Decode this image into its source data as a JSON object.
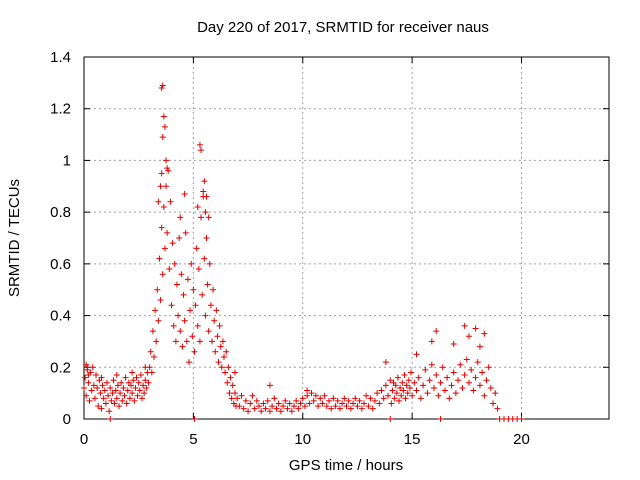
{
  "chart_data": {
    "type": "scatter",
    "title": "Day 220 of 2017, SRMTID for receiver naus",
    "xlabel": "GPS time / hours",
    "ylabel": "SRMTID / TECUs",
    "xlim": [
      0,
      24
    ],
    "ylim": [
      0,
      1.4
    ],
    "x_ticks": [
      0,
      5,
      10,
      15,
      20
    ],
    "y_ticks": [
      0,
      0.2,
      0.4,
      0.6,
      0.8,
      1,
      1.2,
      1.4
    ],
    "x_tick_labels": [
      "0",
      "5",
      "10",
      "15",
      "20"
    ],
    "y_tick_labels": [
      "0",
      "0.2",
      "0.4",
      "0.6",
      "0.8",
      "1",
      "1.2",
      "1.4"
    ],
    "grid": true,
    "marker": "+",
    "color": "#e00000",
    "series": [
      {
        "name": "SRMTID",
        "points": [
          [
            0.0,
            0.12
          ],
          [
            0.05,
            0.16
          ],
          [
            0.1,
            0.09
          ],
          [
            0.15,
            0.2
          ],
          [
            0.2,
            0.14
          ],
          [
            0.25,
            0.07
          ],
          [
            0.3,
            0.18
          ],
          [
            0.35,
            0.11
          ],
          [
            0.4,
            0.2
          ],
          [
            0.45,
            0.13
          ],
          [
            0.5,
            0.08
          ],
          [
            0.55,
            0.17
          ],
          [
            0.6,
            0.12
          ],
          [
            0.65,
            0.05
          ],
          [
            0.7,
            0.15
          ],
          [
            0.75,
            0.1
          ],
          [
            0.8,
            0.04
          ],
          [
            0.85,
            0.13
          ],
          [
            0.9,
            0.08
          ],
          [
            0.95,
            0.11
          ],
          [
            1.0,
            0.06
          ],
          [
            1.05,
            0.14
          ],
          [
            1.1,
            0.09
          ],
          [
            1.15,
            0.03
          ],
          [
            1.2,
            0.12
          ],
          [
            1.25,
            0.07
          ],
          [
            1.3,
            0.1
          ],
          [
            1.35,
            0.15
          ],
          [
            1.4,
            0.06
          ],
          [
            1.45,
            0.11
          ],
          [
            1.5,
            0.08
          ],
          [
            1.55,
            0.13
          ],
          [
            1.6,
            0.05
          ],
          [
            1.65,
            0.1
          ],
          [
            1.7,
            0.14
          ],
          [
            1.75,
            0.07
          ],
          [
            1.8,
            0.12
          ],
          [
            1.85,
            0.09
          ],
          [
            1.9,
            0.16
          ],
          [
            1.95,
            0.06
          ],
          [
            2.0,
            0.11
          ],
          [
            2.05,
            0.14
          ],
          [
            2.1,
            0.08
          ],
          [
            2.15,
            0.13
          ],
          [
            2.2,
            0.1
          ],
          [
            2.25,
            0.15
          ],
          [
            2.3,
            0.07
          ],
          [
            2.35,
            0.12
          ],
          [
            2.4,
            0.16
          ],
          [
            2.45,
            0.09
          ],
          [
            2.5,
            0.14
          ],
          [
            2.55,
            0.11
          ],
          [
            2.6,
            0.17
          ],
          [
            2.65,
            0.08
          ],
          [
            2.7,
            0.13
          ],
          [
            2.75,
            0.1
          ],
          [
            2.8,
            0.15
          ],
          [
            2.85,
            0.12
          ],
          [
            2.9,
            0.18
          ],
          [
            2.95,
            0.14
          ],
          [
            3.0,
            0.2
          ],
          [
            3.05,
            0.26
          ],
          [
            3.1,
            0.18
          ],
          [
            3.15,
            0.34
          ],
          [
            3.2,
            0.24
          ],
          [
            3.25,
            0.42
          ],
          [
            3.3,
            0.3
          ],
          [
            3.35,
            0.5
          ],
          [
            3.4,
            0.38
          ],
          [
            3.45,
            0.62
          ],
          [
            3.5,
            0.46
          ],
          [
            3.55,
            0.74
          ],
          [
            3.6,
            0.56
          ],
          [
            3.65,
            0.82
          ],
          [
            3.7,
            0.66
          ],
          [
            3.75,
            0.9
          ],
          [
            3.8,
            0.72
          ],
          [
            3.85,
            0.96
          ],
          [
            3.9,
            0.58
          ],
          [
            3.95,
            0.84
          ],
          [
            4.0,
            0.44
          ],
          [
            4.05,
            0.68
          ],
          [
            4.1,
            0.36
          ],
          [
            4.15,
            0.6
          ],
          [
            4.2,
            0.3
          ],
          [
            4.25,
            0.52
          ],
          [
            4.3,
            0.4
          ],
          [
            4.35,
            0.7
          ],
          [
            4.4,
            0.34
          ],
          [
            4.45,
            0.56
          ],
          [
            4.5,
            0.28
          ],
          [
            4.55,
            0.48
          ],
          [
            4.6,
            0.38
          ],
          [
            4.65,
            0.72
          ],
          [
            4.7,
            0.3
          ],
          [
            4.75,
            0.54
          ],
          [
            4.8,
            0.22
          ],
          [
            4.85,
            0.42
          ],
          [
            4.9,
            0.6
          ],
          [
            4.95,
            0.32
          ],
          [
            5.0,
            0.5
          ],
          [
            5.05,
            0.26
          ],
          [
            5.1,
            0.44
          ],
          [
            5.15,
            0.66
          ],
          [
            5.2,
            0.36
          ],
          [
            5.25,
            0.58
          ],
          [
            5.3,
            0.3
          ],
          [
            5.35,
            0.78
          ],
          [
            5.4,
            0.48
          ],
          [
            5.45,
            0.86
          ],
          [
            5.5,
            0.62
          ],
          [
            5.55,
            0.4
          ],
          [
            5.6,
            0.7
          ],
          [
            5.65,
            0.52
          ],
          [
            5.7,
            0.34
          ],
          [
            5.75,
            0.6
          ],
          [
            5.8,
            0.44
          ],
          [
            5.85,
            0.3
          ],
          [
            5.9,
            0.5
          ],
          [
            5.95,
            0.38
          ],
          [
            6.0,
            0.26
          ],
          [
            6.05,
            0.42
          ],
          [
            6.1,
            0.32
          ],
          [
            6.15,
            0.22
          ],
          [
            6.2,
            0.36
          ],
          [
            6.25,
            0.28
          ],
          [
            6.3,
            0.2
          ],
          [
            6.35,
            0.3
          ],
          [
            6.4,
            0.24
          ],
          [
            6.45,
            0.18
          ],
          [
            6.5,
            0.26
          ],
          [
            6.55,
            0.14
          ],
          [
            6.6,
            0.2
          ],
          [
            6.65,
            0.1
          ],
          [
            6.7,
            0.16
          ],
          [
            6.75,
            0.08
          ],
          [
            6.8,
            0.13
          ],
          [
            6.85,
            0.06
          ],
          [
            6.9,
            0.1
          ],
          [
            6.95,
            0.05
          ],
          [
            7.0,
            0.08
          ],
          [
            7.1,
            0.05
          ],
          [
            7.2,
            0.09
          ],
          [
            7.3,
            0.04
          ],
          [
            7.4,
            0.07
          ],
          [
            7.5,
            0.03
          ],
          [
            7.6,
            0.06
          ],
          [
            7.7,
            0.09
          ],
          [
            7.8,
            0.04
          ],
          [
            7.9,
            0.07
          ],
          [
            8.0,
            0.05
          ],
          [
            8.1,
            0.03
          ],
          [
            8.2,
            0.06
          ],
          [
            8.3,
            0.04
          ],
          [
            8.4,
            0.07
          ],
          [
            8.5,
            0.03
          ],
          [
            8.6,
            0.05
          ],
          [
            8.7,
            0.08
          ],
          [
            8.8,
            0.04
          ],
          [
            8.9,
            0.06
          ],
          [
            9.0,
            0.03
          ],
          [
            9.1,
            0.05
          ],
          [
            9.2,
            0.07
          ],
          [
            9.3,
            0.04
          ],
          [
            9.4,
            0.06
          ],
          [
            9.5,
            0.03
          ],
          [
            9.6,
            0.05
          ],
          [
            9.7,
            0.07
          ],
          [
            9.8,
            0.04
          ],
          [
            9.9,
            0.06
          ],
          [
            10.0,
            0.08
          ],
          [
            10.1,
            0.05
          ],
          [
            10.2,
            0.09
          ],
          [
            10.3,
            0.06
          ],
          [
            10.4,
            0.1
          ],
          [
            10.5,
            0.07
          ],
          [
            10.6,
            0.09
          ],
          [
            10.7,
            0.05
          ],
          [
            10.8,
            0.08
          ],
          [
            10.9,
            0.06
          ],
          [
            11.0,
            0.09
          ],
          [
            11.1,
            0.05
          ],
          [
            11.2,
            0.07
          ],
          [
            11.3,
            0.04
          ],
          [
            11.4,
            0.08
          ],
          [
            11.5,
            0.05
          ],
          [
            11.6,
            0.07
          ],
          [
            11.7,
            0.04
          ],
          [
            11.8,
            0.06
          ],
          [
            11.9,
            0.08
          ],
          [
            12.0,
            0.05
          ],
          [
            12.1,
            0.07
          ],
          [
            12.2,
            0.04
          ],
          [
            12.3,
            0.06
          ],
          [
            12.4,
            0.08
          ],
          [
            12.5,
            0.05
          ],
          [
            12.6,
            0.07
          ],
          [
            12.7,
            0.04
          ],
          [
            12.8,
            0.06
          ],
          [
            12.9,
            0.09
          ],
          [
            13.0,
            0.05
          ],
          [
            13.1,
            0.08
          ],
          [
            13.2,
            0.04
          ],
          [
            13.3,
            0.07
          ],
          [
            13.4,
            0.1
          ],
          [
            13.5,
            0.06
          ],
          [
            13.6,
            0.11
          ],
          [
            13.7,
            0.08
          ],
          [
            13.8,
            0.13
          ],
          [
            13.9,
            0.09
          ],
          [
            14.0,
            0.15
          ],
          [
            14.05,
            0.06
          ],
          [
            14.1,
            0.11
          ],
          [
            14.15,
            0.14
          ],
          [
            14.2,
            0.08
          ],
          [
            14.25,
            0.13
          ],
          [
            14.3,
            0.1
          ],
          [
            14.35,
            0.16
          ],
          [
            14.4,
            0.07
          ],
          [
            14.45,
            0.12
          ],
          [
            14.5,
            0.09
          ],
          [
            14.55,
            0.14
          ],
          [
            14.6,
            0.11
          ],
          [
            14.65,
            0.17
          ],
          [
            14.7,
            0.08
          ],
          [
            14.75,
            0.13
          ],
          [
            14.8,
            0.1
          ],
          [
            14.85,
            0.15
          ],
          [
            14.9,
            0.12
          ],
          [
            14.95,
            0.18
          ],
          [
            15.0,
            0.09
          ],
          [
            15.1,
            0.14
          ],
          [
            15.2,
            0.11
          ],
          [
            15.3,
            0.16
          ],
          [
            15.4,
            0.08
          ],
          [
            15.5,
            0.13
          ],
          [
            15.6,
            0.19
          ],
          [
            15.7,
            0.1
          ],
          [
            15.8,
            0.15
          ],
          [
            15.9,
            0.21
          ],
          [
            16.0,
            0.12
          ],
          [
            16.1,
            0.17
          ],
          [
            16.2,
            0.09
          ],
          [
            16.3,
            0.14
          ],
          [
            16.4,
            0.2
          ],
          [
            16.5,
            0.11
          ],
          [
            16.6,
            0.16
          ],
          [
            16.7,
            0.08
          ],
          [
            16.8,
            0.13
          ],
          [
            16.9,
            0.18
          ],
          [
            17.0,
            0.1
          ],
          [
            17.1,
            0.15
          ],
          [
            17.2,
            0.21
          ],
          [
            17.3,
            0.12
          ],
          [
            17.4,
            0.17
          ],
          [
            17.5,
            0.23
          ],
          [
            17.6,
            0.14
          ],
          [
            17.7,
            0.19
          ],
          [
            17.8,
            0.11
          ],
          [
            17.9,
            0.16
          ],
          [
            18.0,
            0.22
          ],
          [
            18.1,
            0.13
          ],
          [
            18.2,
            0.18
          ],
          [
            18.3,
            0.09
          ],
          [
            18.4,
            0.15
          ],
          [
            18.5,
            0.2
          ],
          [
            18.6,
            0.12
          ],
          [
            18.7,
            0.06
          ],
          [
            18.8,
            0.1
          ],
          [
            18.9,
            0.04
          ],
          [
            3.55,
            1.28
          ],
          [
            3.6,
            1.29
          ],
          [
            3.65,
            1.17
          ],
          [
            3.7,
            1.13
          ],
          [
            3.6,
            1.09
          ],
          [
            3.75,
            1.0
          ],
          [
            3.8,
            0.97
          ],
          [
            3.55,
            0.95
          ],
          [
            5.3,
            1.06
          ],
          [
            5.35,
            1.04
          ],
          [
            5.5,
            0.92
          ],
          [
            5.45,
            0.88
          ],
          [
            5.6,
            0.86
          ],
          [
            3.5,
            0.9
          ],
          [
            4.6,
            0.87
          ],
          [
            5.2,
            0.82
          ],
          [
            3.4,
            0.84
          ],
          [
            5.55,
            0.8
          ],
          [
            4.4,
            0.78
          ],
          [
            5.7,
            0.78
          ],
          [
            1.2,
            0.0
          ],
          [
            5.05,
            0.0
          ],
          [
            14.0,
            0.0
          ],
          [
            16.3,
            0.0
          ],
          [
            19.0,
            0.0
          ],
          [
            19.2,
            0.0
          ],
          [
            19.4,
            0.0
          ],
          [
            19.6,
            0.0
          ],
          [
            19.8,
            0.0
          ],
          [
            20.0,
            0.0
          ],
          [
            16.1,
            0.34
          ],
          [
            17.4,
            0.36
          ],
          [
            17.9,
            0.35
          ],
          [
            17.6,
            0.32
          ],
          [
            18.3,
            0.33
          ],
          [
            15.9,
            0.3
          ],
          [
            16.9,
            0.29
          ],
          [
            18.1,
            0.28
          ],
          [
            15.2,
            0.25
          ],
          [
            13.8,
            0.22
          ],
          [
            0.1,
            0.21
          ],
          [
            0.15,
            0.19
          ],
          [
            0.2,
            0.17
          ],
          [
            0.8,
            0.16
          ],
          [
            1.5,
            0.17
          ],
          [
            2.2,
            0.18
          ],
          [
            2.8,
            0.2
          ],
          [
            6.9,
            0.18
          ],
          [
            8.5,
            0.13
          ],
          [
            10.2,
            0.11
          ]
        ]
      }
    ]
  }
}
